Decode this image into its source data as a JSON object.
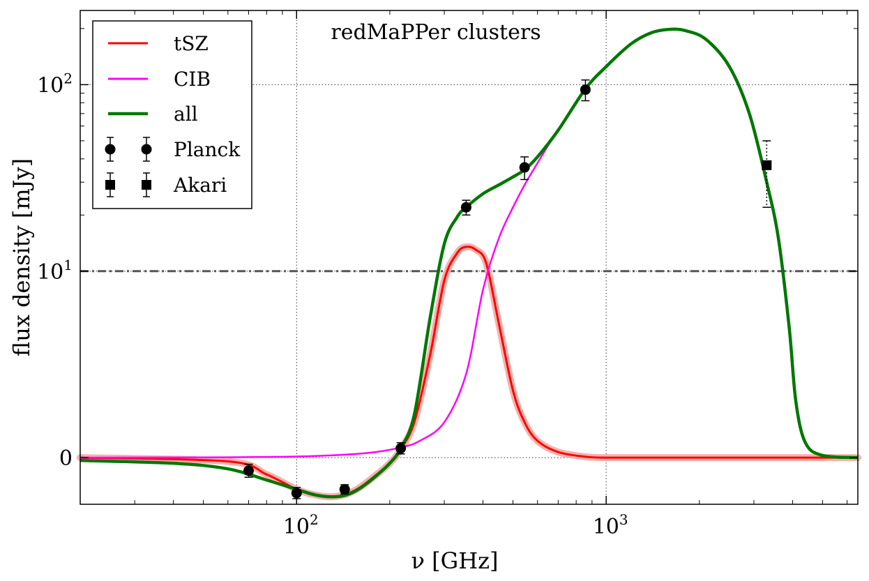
{
  "chart_data": {
    "type": "line",
    "title": "redMaPPer clusters",
    "xlabel": "ν [GHz]",
    "ylabel": "flux density [mJy]",
    "xscale": "log",
    "yscale": "symlog",
    "xlim": [
      20,
      6500
    ],
    "ylim": [
      -2.5,
      250
    ],
    "x_ticks": [
      {
        "value": 100,
        "base": "10",
        "exp": "2"
      },
      {
        "value": 1000,
        "base": "10",
        "exp": "3"
      }
    ],
    "y_ticks": [
      {
        "value": 0,
        "label": "0"
      },
      {
        "value": 10,
        "base": "10",
        "exp": "1"
      },
      {
        "value": 100,
        "base": "10",
        "exp": "2"
      }
    ],
    "grid": true,
    "legend_position": "top-left",
    "reference_line": {
      "y": 10,
      "style": "dash-dot",
      "color": "#555555"
    },
    "series": [
      {
        "name": "tSZ",
        "color": "#ff0000",
        "band_color": "#f3b3ae",
        "x": [
          20,
          60,
          80,
          100,
          115,
          130,
          145,
          160,
          180,
          200,
          217,
          240,
          270,
          300,
          330,
          353,
          380,
          410,
          450,
          500,
          545,
          600,
          700,
          857,
          1000,
          1500,
          3000,
          6500
        ],
        "y": [
          0,
          -0.2,
          -0.9,
          -1.7,
          -2.0,
          -2.1,
          -1.95,
          -1.6,
          -0.95,
          -0.3,
          0.45,
          1.9,
          5.5,
          9.5,
          12.5,
          13.5,
          13.0,
          11.0,
          7.2,
          3.6,
          1.9,
          0.9,
          0.3,
          0.05,
          0,
          0,
          0,
          0
        ]
      },
      {
        "name": "CIB",
        "color": "#ff00ff",
        "x": [
          20,
          60,
          100,
          140,
          180,
          217,
          250,
          300,
          353,
          400,
          450,
          500,
          545,
          600,
          700
        ],
        "y": [
          0,
          0.02,
          0.06,
          0.15,
          0.3,
          0.55,
          0.9,
          1.9,
          4.5,
          9.0,
          15.0,
          22.0,
          29.0,
          38.0,
          58.0
        ]
      },
      {
        "name": "all",
        "color": "#007700",
        "x": [
          20,
          40,
          60,
          80,
          100,
          115,
          130,
          145,
          160,
          180,
          200,
          217,
          240,
          270,
          300,
          330,
          353,
          400,
          450,
          500,
          545,
          600,
          700,
          857,
          1000,
          1200,
          1400,
          1600,
          1800,
          2100,
          2500,
          2900,
          3300,
          3600,
          3900,
          4100,
          4400,
          5000,
          6500
        ],
        "y": [
          -0.15,
          -0.3,
          -0.6,
          -1.2,
          -1.7,
          -2.0,
          -2.1,
          -2.0,
          -1.65,
          -1.0,
          -0.3,
          0.5,
          2.3,
          7.5,
          14.0,
          19.5,
          22.0,
          26.0,
          29.0,
          32.0,
          35.0,
          41.0,
          57.0,
          95.0,
          125.0,
          165.0,
          190.0,
          198.0,
          195.0,
          175.0,
          125.0,
          70.0,
          30.0,
          15.0,
          7.0,
          3.0,
          0.8,
          0.12,
          0
        ]
      }
    ],
    "points": [
      {
        "name": "Planck",
        "marker": "circle",
        "x": [
          70,
          100,
          143,
          217,
          353,
          545,
          857
        ],
        "y": [
          -0.7,
          -1.9,
          -1.7,
          0.5,
          22.0,
          36.0,
          94.0
        ],
        "yerr": [
          0.35,
          0.3,
          0.25,
          0.3,
          2.0,
          5.0,
          12.0
        ]
      },
      {
        "name": "Akari",
        "marker": "square",
        "x": [
          3300
        ],
        "y": [
          37.0
        ],
        "yerr_low": 15.0,
        "yerr_high": 13.0
      }
    ]
  }
}
